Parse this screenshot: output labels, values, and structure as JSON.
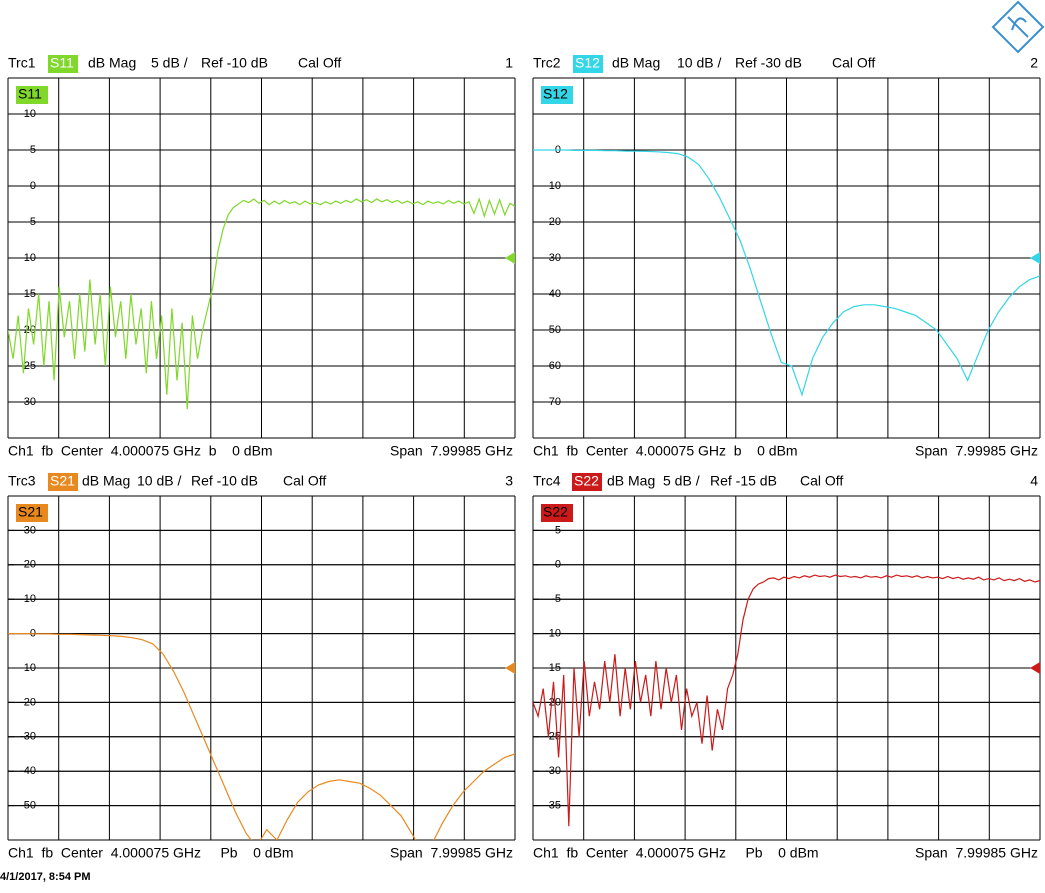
{
  "chart_data": [
    {
      "type": "line",
      "trace": "Trc1",
      "format": "dB Mag",
      "scale": "5 dB /",
      "reference": "Ref -10 dB",
      "cal": "Cal Off",
      "number": "1",
      "channel": "Ch1  fb  Center  4.000075 GHz  b    0 dBm",
      "span": "Span  7.99985 GHz",
      "ylim": [
        -35,
        15
      ],
      "yticks": [
        10,
        5,
        0,
        -5,
        -10,
        -15,
        -20,
        -25,
        -30
      ],
      "ref_level": -10,
      "grid": true,
      "series": [
        {
          "name": "S11",
          "color": "#7fd82a",
          "values": [
            -20,
            -24,
            -18,
            -26,
            -17,
            -22,
            -15,
            -25,
            -16,
            -27,
            -14,
            -21,
            -16,
            -24,
            -15,
            -23,
            -13,
            -22,
            -15,
            -25,
            -14,
            -21,
            -16,
            -24,
            -15,
            -22,
            -17,
            -26,
            -16,
            -24,
            -18,
            -29,
            -17,
            -27,
            -19,
            -31,
            -18,
            -24,
            -20,
            -17,
            -14,
            -9,
            -6,
            -4,
            -3,
            -2.5,
            -2,
            -2.3,
            -1.8,
            -2.4,
            -2,
            -2.6,
            -2.1,
            -2.5,
            -2,
            -2.4,
            -2.2,
            -2.6,
            -2.1,
            -2.5,
            -2.3,
            -2.6,
            -2.2,
            -2.5,
            -2.1,
            -2.4,
            -2,
            -2.3,
            -1.8,
            -2.2,
            -1.9,
            -2.3,
            -1.8,
            -2.2,
            -1.9,
            -2.3,
            -2,
            -2.4,
            -2.1,
            -2.5,
            -2.2,
            -2.6,
            -2.1,
            -2.4,
            -2.2,
            -2.5,
            -2,
            -2.4,
            -2.1,
            -2.5,
            -2.2,
            -3.8,
            -1.8,
            -4.2,
            -2,
            -3.9,
            -1.9,
            -4,
            -2.4,
            -2.8
          ]
        }
      ]
    },
    {
      "type": "line",
      "trace": "Trc2",
      "format": "dB Mag",
      "scale": "10 dB /",
      "reference": "Ref -30 dB",
      "cal": "Cal Off",
      "number": "2",
      "channel": "Ch1  fb  Center  4.000075 GHz  b    0 dBm",
      "span": "Span  7.99985 GHz",
      "ylim": [
        -80,
        20
      ],
      "yticks": [
        0,
        -10,
        -20,
        -30,
        -40,
        -50,
        -60,
        -70
      ],
      "ref_level": -30,
      "grid": true,
      "series": [
        {
          "name": "S12",
          "color": "#33d6e6",
          "values": [
            0,
            0,
            0,
            0,
            -0.1,
            -0.1,
            -0.1,
            -0.2,
            -0.2,
            -0.3,
            -0.3,
            -0.4,
            -0.5,
            -0.7,
            -1,
            -2,
            -4,
            -8,
            -13,
            -19,
            -25,
            -33,
            -42,
            -51,
            -59,
            -60,
            -68,
            -58,
            -52,
            -48,
            -45,
            -43.5,
            -43,
            -43,
            -43.5,
            -44,
            -45,
            -46,
            -48,
            -50,
            -54,
            -58,
            -64,
            -57,
            -50,
            -45,
            -41,
            -38,
            -36,
            -35
          ]
        }
      ]
    },
    {
      "type": "line",
      "trace": "Trc3",
      "format": "dB Mag",
      "scale": "10 dB /",
      "reference": "Ref -10 dB",
      "cal": "Cal Off",
      "number": "3",
      "channel": "Ch1  fb  Center  4.000075 GHz     Pb    0 dBm",
      "span": "Span  7.99985 GHz",
      "ylim": [
        -60,
        40
      ],
      "yticks": [
        30,
        20,
        10,
        0,
        -10,
        -20,
        -30,
        -40,
        -50
      ],
      "ref_level": -10,
      "grid": true,
      "series": [
        {
          "name": "S21",
          "color": "#e8891f",
          "values": [
            0,
            0,
            0,
            -0.1,
            -0.1,
            -0.2,
            -0.2,
            -0.3,
            -0.4,
            -0.5,
            -0.6,
            -0.8,
            -1.2,
            -1.8,
            -3,
            -6,
            -11,
            -17,
            -24,
            -31,
            -38,
            -45,
            -52,
            -58,
            -62,
            -57,
            -60,
            -54,
            -49,
            -46,
            -44,
            -43,
            -42.5,
            -43,
            -43.5,
            -45,
            -47,
            -50,
            -53,
            -58,
            -63,
            -61,
            -55,
            -50,
            -46,
            -43,
            -40,
            -38,
            -36,
            -35
          ]
        }
      ]
    },
    {
      "type": "line",
      "trace": "Trc4",
      "format": "dB Mag",
      "scale": "5 dB /",
      "reference": "Ref -15 dB",
      "cal": "Cal Off",
      "number": "4",
      "channel": "Ch1  fb  Center  4.000075 GHz     Pb    0 dBm",
      "span": "Span  7.99985 GHz",
      "ylim": [
        -40,
        10
      ],
      "yticks": [
        5,
        0,
        -5,
        -10,
        -15,
        -20,
        -25,
        -30,
        -35
      ],
      "ref_level": -15,
      "grid": true,
      "series": [
        {
          "name": "S22",
          "color": "#cc1a1a",
          "values": [
            -20,
            -22,
            -18,
            -25,
            -17,
            -28,
            -16,
            -38,
            -15,
            -25,
            -14,
            -22,
            -17,
            -21,
            -14,
            -20,
            -13,
            -22,
            -15,
            -21,
            -14,
            -20,
            -16,
            -22,
            -14,
            -21,
            -15,
            -20,
            -16,
            -24,
            -18,
            -22,
            -20,
            -26,
            -19,
            -27,
            -21,
            -24,
            -18,
            -16,
            -13,
            -8,
            -5,
            -3.5,
            -2.8,
            -2.5,
            -2,
            -1.9,
            -2.2,
            -1.8,
            -2,
            -1.7,
            -1.9,
            -1.6,
            -1.8,
            -1.5,
            -1.7,
            -1.6,
            -1.8,
            -1.5,
            -1.7,
            -1.6,
            -1.8,
            -1.7,
            -1.9,
            -1.6,
            -1.8,
            -1.7,
            -1.9,
            -1.6,
            -1.8,
            -1.5,
            -1.7,
            -1.6,
            -1.8,
            -1.6,
            -1.9,
            -1.7,
            -1.9,
            -1.8,
            -2,
            -1.7,
            -2,
            -1.8,
            -2.1,
            -1.9,
            -2.1,
            -1.8,
            -2.2,
            -2,
            -2.2,
            -1.9,
            -2.3,
            -2.1,
            -2.3,
            -2,
            -2.4,
            -2.2,
            -2.5,
            -2.3
          ]
        }
      ]
    }
  ],
  "timestamp": "4/1/2017, 8:54 PM"
}
